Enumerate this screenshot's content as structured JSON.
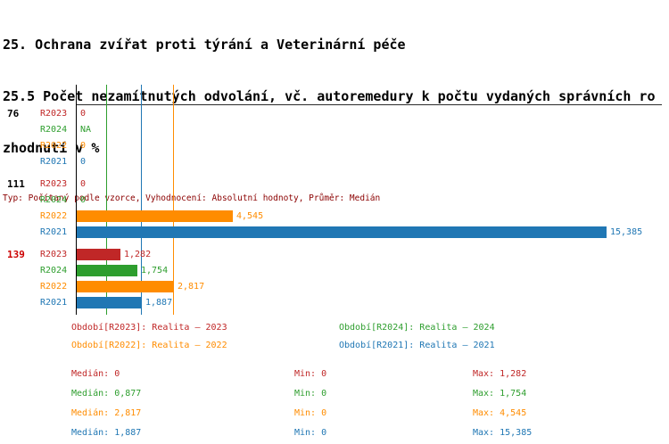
{
  "colors": {
    "title": "#000000",
    "info": "#8b0000",
    "axis": "#000000",
    "group_highlight": "#cc0000"
  },
  "header": {
    "title_line1": "25. Ochrana zvířat proti týrání a Veterinární péče",
    "title_line2": "25.5 Počet nezamítnutých odvolání, vč. autoremedury k počtu vydaných správních ro",
    "title_line3": "zhodnutí v %",
    "info_line": "Typ: Počítaný podle vzorce, Vyhodnocení: Absolutní hodnoty, Průměr: Medián"
  },
  "chart_data": {
    "type": "bar",
    "orientation": "horizontal",
    "unit": "%",
    "xlim": [
      0,
      15.8
    ],
    "average_type": "Medián",
    "series": [
      {
        "id": "R2023",
        "color": "#c02727",
        "legend": "Období[R2023]: Realita – 2023",
        "median": 0,
        "median_display": "0",
        "min_display": "0",
        "max_display": "1,282"
      },
      {
        "id": "R2024",
        "color": "#2e9e2e",
        "legend": "Období[R2024]: Realita – 2024",
        "median": 0.877,
        "median_display": "0,877",
        "min_display": "0",
        "max_display": "1,754"
      },
      {
        "id": "R2022",
        "color": "#ff8c00",
        "legend": "Období[R2022]: Realita – 2022",
        "median": 2.817,
        "median_display": "2,817",
        "min_display": "0",
        "max_display": "4,545"
      },
      {
        "id": "R2021",
        "color": "#2077b4",
        "legend": "Období[R2021]: Realita – 2021",
        "median": 1.887,
        "median_display": "1,887",
        "min_display": "0",
        "max_display": "15,385"
      }
    ],
    "groups": [
      {
        "label": "76",
        "label_color": "#000000",
        "values": [
          {
            "series": "R2023",
            "value": 0,
            "display": "0"
          },
          {
            "series": "R2024",
            "value": null,
            "display": "NA"
          },
          {
            "series": "R2022",
            "value": 0,
            "display": "0"
          },
          {
            "series": "R2021",
            "value": 0,
            "display": "0"
          }
        ]
      },
      {
        "label": "111",
        "label_color": "#000000",
        "values": [
          {
            "series": "R2023",
            "value": 0,
            "display": "0"
          },
          {
            "series": "R2024",
            "value": 0,
            "display": "0"
          },
          {
            "series": "R2022",
            "value": 4.545,
            "display": "4,545"
          },
          {
            "series": "R2021",
            "value": 15.385,
            "display": "15,385"
          }
        ]
      },
      {
        "label": "139",
        "label_color": "#cc0000",
        "values": [
          {
            "series": "R2023",
            "value": 1.282,
            "display": "1,282"
          },
          {
            "series": "R2024",
            "value": 1.754,
            "display": "1,754"
          },
          {
            "series": "R2022",
            "value": 2.817,
            "display": "2,817"
          },
          {
            "series": "R2021",
            "value": 1.887,
            "display": "1,887"
          }
        ]
      }
    ],
    "stats_labels": {
      "median": "Medián:",
      "min": "Min:",
      "max": "Max:"
    }
  }
}
